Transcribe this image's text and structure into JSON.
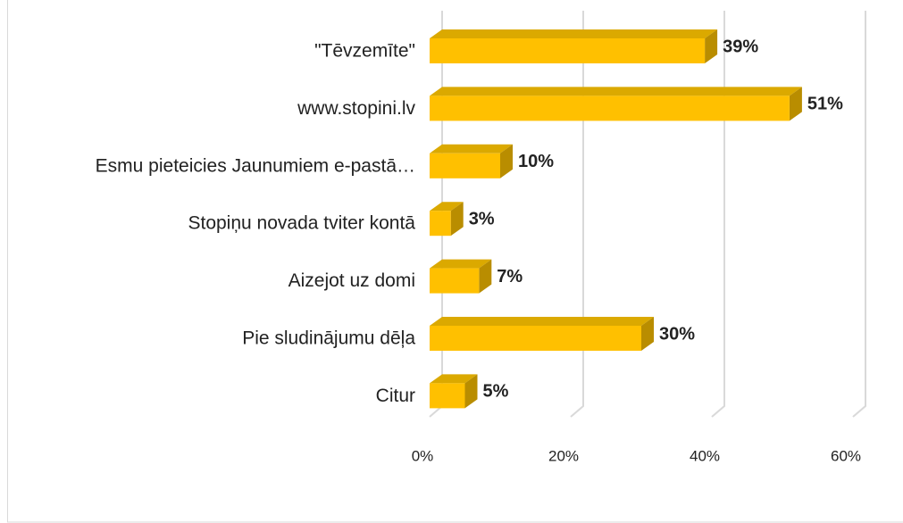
{
  "chart_data": {
    "type": "bar3d_horizontal",
    "categories": [
      "\"Tēvzemīte\"",
      "www.stopini.lv",
      "Esmu pieteicies Jaunumiem e-pastā…",
      "Stopiņu novada tviter kontā",
      "Aizejot uz domi",
      "Pie sludinājumu dēļa",
      "Citur"
    ],
    "values": [
      39,
      51,
      10,
      3,
      7,
      30,
      5
    ],
    "value_labels": [
      "39%",
      "51%",
      "10%",
      "3%",
      "7%",
      "30%",
      "5%"
    ],
    "color": "#ffc000",
    "xlim": [
      0,
      60
    ],
    "xticks": [
      {
        "value": 0,
        "label": "0%"
      },
      {
        "value": 20,
        "label": "20%"
      },
      {
        "value": 40,
        "label": "40%"
      },
      {
        "value": 60,
        "label": "60%"
      }
    ],
    "grid": true
  }
}
